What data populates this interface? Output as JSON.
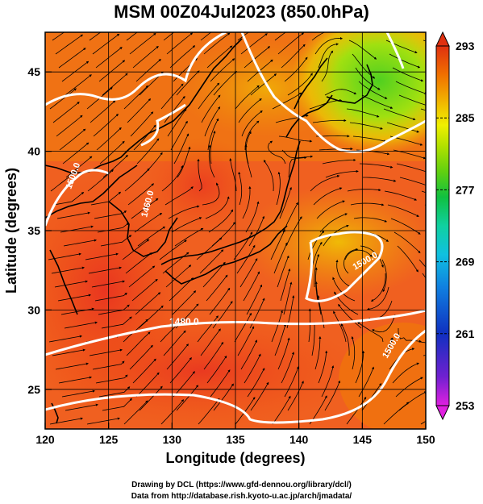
{
  "title": "MSM 00Z04Jul2023 (850.0hPa)",
  "xaxis": {
    "label": "Longitude (degrees)",
    "ticks": [
      "120",
      "125",
      "130",
      "135",
      "140",
      "145",
      "150"
    ],
    "range": [
      120,
      150
    ]
  },
  "yaxis": {
    "label": "Latitude  (degrees)",
    "ticks": [
      "25",
      "30",
      "35",
      "40",
      "45"
    ],
    "range": [
      22.5,
      47.5
    ]
  },
  "colorbar": {
    "ticks": [
      "293",
      "285",
      "277",
      "269",
      "261",
      "253"
    ],
    "range": [
      253,
      293
    ],
    "colors": [
      "#e020e0",
      "#7020d0",
      "#1030c0",
      "#1080e0",
      "#10c0e0",
      "#10d0a0",
      "#10c040",
      "#60d010",
      "#b0e000",
      "#f0f000",
      "#f0b000",
      "#f07000",
      "#e03010"
    ]
  },
  "contour_labels": [
    "1480.0",
    "1500.0",
    "1500.0",
    "1500.0",
    "1460.0"
  ],
  "credits": {
    "line1": "Drawing by DCL (https://www.gfd-dennou.org/library/dcl/)",
    "line2": "Data from http://database.rish.kyoto-u.ac.jp/arch/jmadata/"
  }
}
